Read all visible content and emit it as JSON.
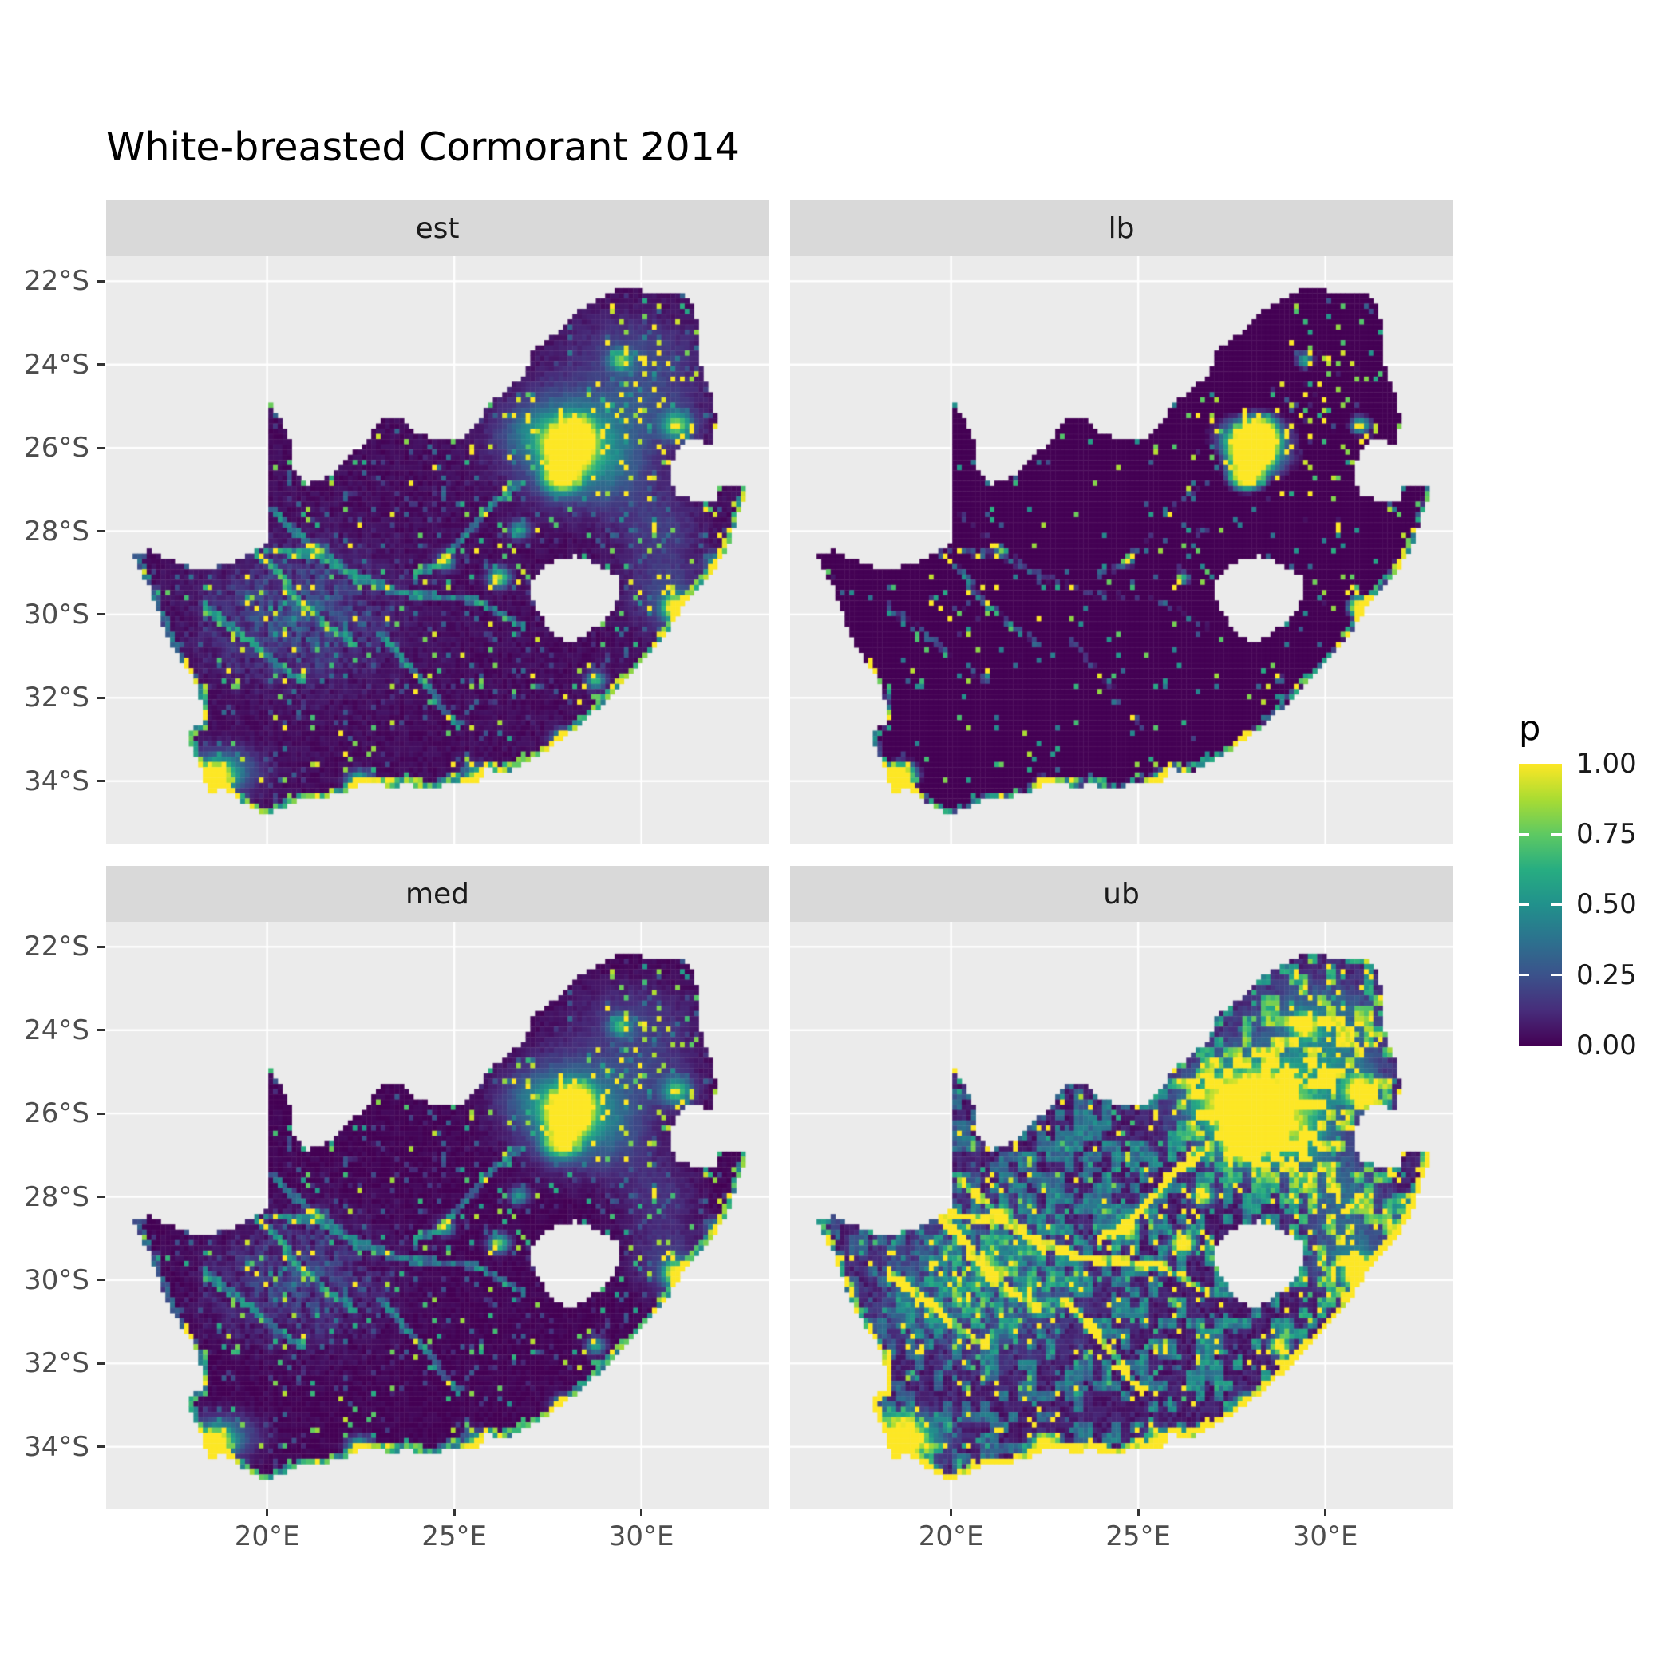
{
  "chart_data": {
    "type": "heatmap",
    "title": "White-breasted Cormorant 2014",
    "region": "South Africa",
    "facets": [
      {
        "label": "est",
        "mul": 1.0,
        "add": 0.0,
        "ub": false
      },
      {
        "label": "lb",
        "mul": 1.45,
        "add": -0.62,
        "ub": false
      },
      {
        "label": "med",
        "mul": 0.9,
        "add": -0.02,
        "ub": false
      },
      {
        "label": "ub",
        "mul": 1.85,
        "add": 0.02,
        "ub": true
      }
    ],
    "x_ticks": [
      {
        "label": "20°E",
        "value": 20
      },
      {
        "label": "25°E",
        "value": 25
      },
      {
        "label": "30°E",
        "value": 30
      }
    ],
    "y_ticks": [
      {
        "label": "22°S",
        "value": -22
      },
      {
        "label": "24°S",
        "value": -24
      },
      {
        "label": "26°S",
        "value": -26
      },
      {
        "label": "28°S",
        "value": -28
      },
      {
        "label": "30°S",
        "value": -30
      },
      {
        "label": "32°S",
        "value": -32
      },
      {
        "label": "34°S",
        "value": -34
      }
    ],
    "lon_range": [
      15.7,
      33.4
    ],
    "lat_range": [
      -35.5,
      -21.4
    ],
    "legend": {
      "title": "p",
      "breaks": [
        {
          "label": "1.00",
          "value": 1.0
        },
        {
          "label": "0.75",
          "value": 0.75
        },
        {
          "label": "0.50",
          "value": 0.5
        },
        {
          "label": "0.25",
          "value": 0.25
        },
        {
          "label": "0.00",
          "value": 0.0
        }
      ],
      "limits": [
        0,
        1
      ]
    },
    "colormap": [
      "#440154",
      "#472d7b",
      "#3b528b",
      "#2c728e",
      "#21918c",
      "#27ad81",
      "#5ec962",
      "#aadc32",
      "#fde725"
    ],
    "map": {
      "grid_step": 0.125,
      "coast_start": 49,
      "outline": [
        [
          16.45,
          -28.58
        ],
        [
          16.9,
          -28.45
        ],
        [
          17.35,
          -28.68
        ],
        [
          17.95,
          -28.86
        ],
        [
          18.6,
          -28.87
        ],
        [
          19.2,
          -28.72
        ],
        [
          19.7,
          -28.5
        ],
        [
          19.99,
          -28.25
        ],
        [
          19.99,
          -24.77
        ],
        [
          20.35,
          -25.3
        ],
        [
          20.62,
          -25.88
        ],
        [
          20.64,
          -26.45
        ],
        [
          21.1,
          -26.86
        ],
        [
          21.7,
          -26.66
        ],
        [
          22.2,
          -26.15
        ],
        [
          22.64,
          -25.95
        ],
        [
          23.0,
          -25.32
        ],
        [
          23.5,
          -25.28
        ],
        [
          24.0,
          -25.65
        ],
        [
          24.75,
          -25.83
        ],
        [
          25.35,
          -25.73
        ],
        [
          25.62,
          -25.46
        ],
        [
          25.95,
          -24.92
        ],
        [
          26.45,
          -24.6
        ],
        [
          26.85,
          -24.28
        ],
        [
          27.12,
          -23.65
        ],
        [
          27.55,
          -23.38
        ],
        [
          27.95,
          -23.1
        ],
        [
          28.35,
          -22.72
        ],
        [
          28.9,
          -22.45
        ],
        [
          29.37,
          -22.19
        ],
        [
          29.9,
          -22.19
        ],
        [
          30.4,
          -22.34
        ],
        [
          30.9,
          -22.29
        ],
        [
          31.3,
          -22.4
        ],
        [
          31.55,
          -23.2
        ],
        [
          31.56,
          -23.95
        ],
        [
          31.8,
          -24.55
        ],
        [
          31.98,
          -25.15
        ],
        [
          31.97,
          -25.97
        ],
        [
          31.4,
          -25.73
        ],
        [
          31.0,
          -25.98
        ],
        [
          30.82,
          -26.32
        ],
        [
          30.8,
          -26.85
        ],
        [
          30.95,
          -27.1
        ],
        [
          31.2,
          -27.22
        ],
        [
          31.6,
          -27.31
        ],
        [
          31.97,
          -27.31
        ],
        [
          32.12,
          -26.86
        ],
        [
          32.89,
          -26.86
        ],
        [
          32.65,
          -27.45
        ],
        [
          32.4,
          -28.2
        ],
        [
          32.0,
          -28.85
        ],
        [
          31.5,
          -29.35
        ],
        [
          31.05,
          -29.9
        ],
        [
          30.6,
          -30.55
        ],
        [
          30.15,
          -31.05
        ],
        [
          29.55,
          -31.6
        ],
        [
          28.85,
          -32.25
        ],
        [
          28.15,
          -32.8
        ],
        [
          27.45,
          -33.3
        ],
        [
          26.9,
          -33.55
        ],
        [
          26.4,
          -33.78
        ],
        [
          25.85,
          -33.7
        ],
        [
          25.62,
          -34.05
        ],
        [
          25.0,
          -33.98
        ],
        [
          24.5,
          -34.2
        ],
        [
          23.8,
          -34.08
        ],
        [
          23.3,
          -34.12
        ],
        [
          22.5,
          -34.05
        ],
        [
          22.15,
          -34.22
        ],
        [
          21.5,
          -34.42
        ],
        [
          20.8,
          -34.48
        ],
        [
          20.0,
          -34.82
        ],
        [
          19.5,
          -34.62
        ],
        [
          18.85,
          -34.15
        ],
        [
          18.45,
          -34.35
        ],
        [
          18.3,
          -33.9
        ],
        [
          18.05,
          -33.3
        ],
        [
          17.85,
          -32.8
        ],
        [
          18.3,
          -32.65
        ],
        [
          18.22,
          -32.0
        ],
        [
          18.0,
          -31.5
        ],
        [
          17.55,
          -30.9
        ],
        [
          17.15,
          -30.1
        ],
        [
          16.85,
          -29.35
        ]
      ],
      "lesotho": [
        [
          27.02,
          -29.2
        ],
        [
          27.35,
          -28.92
        ],
        [
          27.75,
          -28.62
        ],
        [
          28.3,
          -28.6
        ],
        [
          28.75,
          -28.78
        ],
        [
          29.1,
          -28.93
        ],
        [
          29.38,
          -29.12
        ],
        [
          29.45,
          -29.4
        ],
        [
          29.28,
          -29.78
        ],
        [
          29.08,
          -30.12
        ],
        [
          28.68,
          -30.38
        ],
        [
          28.25,
          -30.62
        ],
        [
          27.92,
          -30.65
        ],
        [
          27.6,
          -30.4
        ],
        [
          27.3,
          -30.0
        ],
        [
          27.05,
          -29.58
        ]
      ],
      "hotspots": [
        [
          28.05,
          -26.1,
          0.55,
          0.45,
          1.35
        ],
        [
          28.15,
          -25.85,
          1.45,
          1.15,
          0.55
        ],
        [
          27.1,
          -25.65,
          0.9,
          0.55,
          0.35
        ],
        [
          28.25,
          -25.65,
          0.45,
          0.35,
          0.9
        ],
        [
          30.95,
          -29.85,
          0.35,
          0.3,
          1.15
        ],
        [
          30.7,
          -29.6,
          0.95,
          0.8,
          0.35
        ],
        [
          18.55,
          -33.92,
          0.45,
          0.32,
          1.25
        ],
        [
          18.85,
          -33.75,
          0.85,
          0.5,
          0.45
        ],
        [
          25.6,
          -33.92,
          0.32,
          0.26,
          0.95
        ],
        [
          27.9,
          -33.0,
          0.27,
          0.22,
          0.8
        ],
        [
          26.2,
          -29.12,
          0.27,
          0.22,
          0.85
        ],
        [
          24.77,
          -28.74,
          0.22,
          0.18,
          0.75
        ],
        [
          29.45,
          -23.9,
          0.3,
          0.25,
          0.6
        ],
        [
          30.97,
          -25.47,
          0.4,
          0.32,
          0.7
        ],
        [
          32.05,
          -28.78,
          0.28,
          0.22,
          0.8
        ],
        [
          22.45,
          -33.98,
          0.3,
          0.2,
          0.8
        ],
        [
          21.25,
          -28.45,
          0.25,
          0.15,
          0.6
        ],
        [
          28.78,
          -31.58,
          0.25,
          0.2,
          0.65
        ],
        [
          27.85,
          -26.75,
          0.45,
          0.32,
          0.85
        ],
        [
          26.73,
          -27.98,
          0.25,
          0.2,
          0.6
        ],
        [
          30.2,
          -24.9,
          1.3,
          1.0,
          0.32
        ],
        [
          29.8,
          -23.6,
          1.6,
          0.8,
          0.28
        ],
        [
          29.2,
          -26.6,
          1.1,
          0.9,
          0.3
        ],
        [
          30.5,
          -28.0,
          1.0,
          0.9,
          0.28
        ]
      ],
      "rivers": [
        [
          [
            19.3,
            -28.2
          ],
          [
            20.2,
            -28.9
          ],
          [
            20.8,
            -29.6
          ],
          [
            21.5,
            -30.2
          ],
          [
            22.3,
            -30.7
          ]
        ],
        [
          [
            20.0,
            -27.4
          ],
          [
            20.8,
            -28.05
          ],
          [
            21.6,
            -28.6
          ],
          [
            22.4,
            -29.2
          ]
        ],
        [
          [
            18.3,
            -29.8
          ],
          [
            19.2,
            -30.4
          ],
          [
            20.0,
            -31.0
          ],
          [
            20.9,
            -31.6
          ]
        ],
        [
          [
            20.0,
            -28.45
          ],
          [
            21.4,
            -28.62
          ],
          [
            22.5,
            -29.1
          ],
          [
            23.6,
            -29.5
          ],
          [
            24.6,
            -29.58
          ],
          [
            25.65,
            -29.68
          ],
          [
            26.85,
            -30.3
          ]
        ],
        [
          [
            26.8,
            -26.82
          ],
          [
            26.0,
            -27.4
          ],
          [
            25.3,
            -28.1
          ],
          [
            24.7,
            -28.75
          ],
          [
            23.95,
            -29.05
          ]
        ],
        [
          [
            23.0,
            -30.5
          ],
          [
            23.8,
            -31.2
          ],
          [
            24.5,
            -32.0
          ],
          [
            25.1,
            -32.7
          ]
        ]
      ],
      "nw_patch": {
        "x": 20.8,
        "y": -30.0,
        "rx": 2.2,
        "ry": 1.5,
        "s": 0.2
      }
    }
  },
  "theme": {
    "panel_bg": "#EBEBEB",
    "strip_bg": "#D9D9D9",
    "grid_color": "#FFFFFF",
    "axis_text_color": "#4D4D4D",
    "strip_text_color": "#1A1A1A",
    "title_color": "#000000",
    "background": "#FFFFFF"
  }
}
